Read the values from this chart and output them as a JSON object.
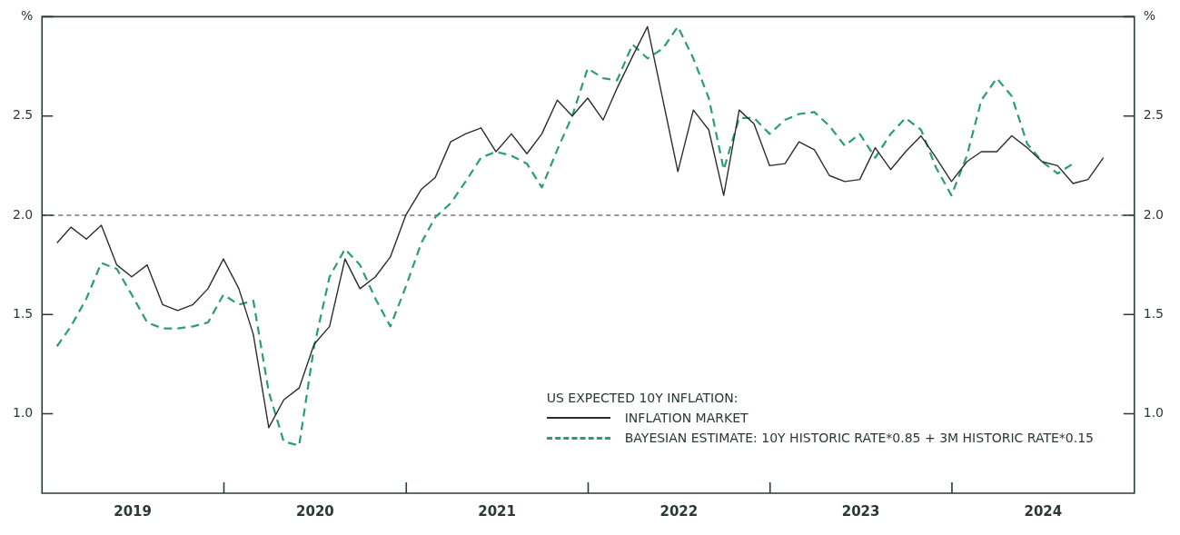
{
  "chart_data": {
    "type": "line",
    "legend_title": "US EXPECTED 10Y INFLATION:",
    "x": [
      "2019-01-31",
      "2019-02-28",
      "2019-03-31",
      "2019-04-30",
      "2019-05-31",
      "2019-06-30",
      "2019-07-31",
      "2019-08-31",
      "2019-09-30",
      "2019-10-31",
      "2019-11-30",
      "2019-12-31",
      "2020-01-31",
      "2020-02-29",
      "2020-03-31",
      "2020-04-30",
      "2020-05-31",
      "2020-06-30",
      "2020-07-31",
      "2020-08-31",
      "2020-09-30",
      "2020-10-31",
      "2020-11-30",
      "2020-12-31",
      "2021-01-31",
      "2021-02-28",
      "2021-03-31",
      "2021-04-30",
      "2021-05-31",
      "2021-06-30",
      "2021-07-31",
      "2021-08-31",
      "2021-09-30",
      "2021-10-31",
      "2021-11-30",
      "2021-12-31",
      "2022-01-31",
      "2022-02-28",
      "2022-03-31",
      "2022-04-30",
      "2022-05-31",
      "2022-06-30",
      "2022-07-31",
      "2022-08-31",
      "2022-09-30",
      "2022-10-31",
      "2022-11-30",
      "2022-12-31",
      "2023-01-31",
      "2023-02-28",
      "2023-03-31",
      "2023-04-30",
      "2023-05-31",
      "2023-06-30",
      "2023-07-31",
      "2023-08-31",
      "2023-09-30",
      "2023-10-31",
      "2023-11-30",
      "2023-12-31",
      "2024-01-31",
      "2024-02-29",
      "2024-03-31",
      "2024-04-30",
      "2024-05-31",
      "2024-06-30",
      "2024-07-31",
      "2024-08-31",
      "2024-09-30",
      "2024-10-31"
    ],
    "series": [
      {
        "name": "INFLATION MARKET",
        "color": "#2d2d2d",
        "line_style": "solid",
        "values": [
          1.86,
          1.94,
          1.88,
          1.95,
          1.75,
          1.69,
          1.75,
          1.55,
          1.52,
          1.55,
          1.63,
          1.78,
          1.63,
          1.4,
          0.93,
          1.07,
          1.13,
          1.35,
          1.44,
          1.78,
          1.63,
          1.69,
          1.79,
          2.0,
          2.13,
          2.19,
          2.37,
          2.41,
          2.44,
          2.32,
          2.41,
          2.31,
          2.41,
          2.58,
          2.5,
          2.59,
          2.48,
          2.64,
          2.8,
          2.95,
          2.58,
          2.22,
          2.53,
          2.43,
          2.1,
          2.53,
          2.46,
          2.25,
          2.26,
          2.37,
          2.33,
          2.2,
          2.17,
          2.18,
          2.34,
          2.23,
          2.32,
          2.4,
          2.29,
          2.17,
          2.27,
          2.32,
          2.32,
          2.4,
          2.34,
          2.27,
          2.25,
          2.16,
          2.18,
          2.29
        ]
      },
      {
        "name": "BAYESIAN ESTIMATE: 10Y HISTORIC RATE*0.85 + 3M HISTORIC RATE*0.15",
        "color": "#2a9d78",
        "line_style": "dashed",
        "values": [
          1.34,
          1.44,
          1.58,
          1.76,
          1.73,
          1.6,
          1.46,
          1.43,
          1.43,
          1.44,
          1.46,
          1.6,
          1.55,
          1.57,
          1.11,
          0.86,
          0.84,
          1.34,
          1.69,
          1.83,
          1.75,
          1.58,
          1.44,
          1.64,
          1.86,
          1.99,
          2.06,
          2.17,
          2.29,
          2.32,
          2.3,
          2.26,
          2.14,
          2.33,
          2.5,
          2.74,
          2.69,
          2.68,
          2.86,
          2.79,
          2.84,
          2.95,
          2.79,
          2.59,
          2.23,
          2.49,
          2.49,
          2.41,
          2.48,
          2.51,
          2.52,
          2.45,
          2.35,
          2.41,
          2.29,
          2.41,
          2.49,
          2.43,
          2.24,
          2.1,
          2.3,
          2.58,
          2.69,
          2.6,
          2.36,
          2.27,
          2.21,
          2.26,
          null,
          null
        ]
      }
    ],
    "xlim": [
      "2019-01-01",
      "2025-01-01"
    ],
    "xticks": [
      {
        "value": "2019-07-02",
        "label": "2019"
      },
      {
        "value": "2020-01-01",
        "label": null
      },
      {
        "value": "2020-07-02",
        "label": "2020"
      },
      {
        "value": "2021-01-01",
        "label": null
      },
      {
        "value": "2021-07-02",
        "label": "2021"
      },
      {
        "value": "2022-01-01",
        "label": null
      },
      {
        "value": "2022-07-02",
        "label": "2022"
      },
      {
        "value": "2023-01-01",
        "label": null
      },
      {
        "value": "2023-07-02",
        "label": "2023"
      },
      {
        "value": "2024-01-01",
        "label": null
      },
      {
        "value": "2024-07-02",
        "label": "2024"
      }
    ],
    "ylim": [
      0.6,
      3
    ],
    "yticks": [
      {
        "value": 1,
        "label": "1.0"
      },
      1.5,
      {
        "value": 2,
        "label": "2.0"
      },
      2.5,
      {
        "value": 3,
        "label": "%"
      }
    ],
    "y2lim": [
      0.6,
      3
    ],
    "y2ticks": [
      {
        "value": 1,
        "label": "1.0"
      },
      1.5,
      {
        "value": 2,
        "label": "2.0"
      },
      2.5,
      {
        "value": 3,
        "label": "%"
      }
    ],
    "ref_lines": [
      {
        "axis": "y",
        "value": 2,
        "color": "#333333",
        "line_style": "dashed"
      }
    ],
    "grid": false,
    "legend": "bottom right",
    "marker": "none"
  }
}
